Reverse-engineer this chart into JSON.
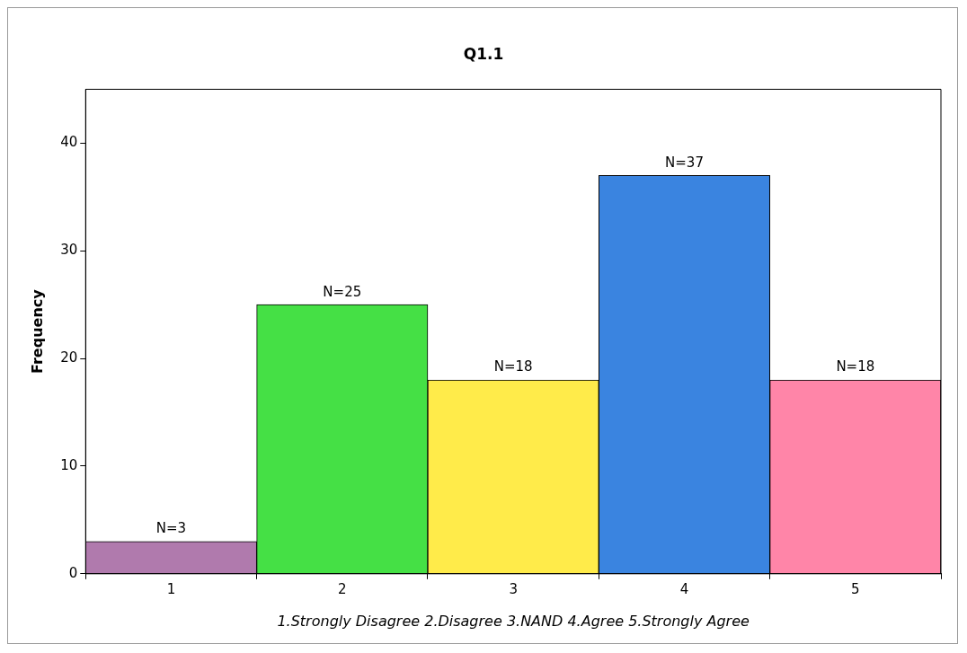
{
  "chart_data": {
    "type": "bar",
    "title": "Q1.1",
    "ylabel": "Frequency",
    "xlabel": "1.Strongly Disagree 2.Disagree 3.NAND 4.Agree 5.Strongly Agree",
    "categories": [
      "1",
      "2",
      "3",
      "4",
      "5"
    ],
    "values": [
      3,
      25,
      18,
      37,
      18
    ],
    "colors": [
      "#b07aad",
      "#45e045",
      "#ffeb4a",
      "#3a84e0",
      "#ff85a8"
    ],
    "value_labels": [
      "N=3",
      "N=25",
      "N=18",
      "N=37",
      "N=18"
    ],
    "ylim": [
      0,
      45
    ],
    "yticks": [
      0,
      10,
      20,
      30,
      40
    ],
    "legend": false
  }
}
